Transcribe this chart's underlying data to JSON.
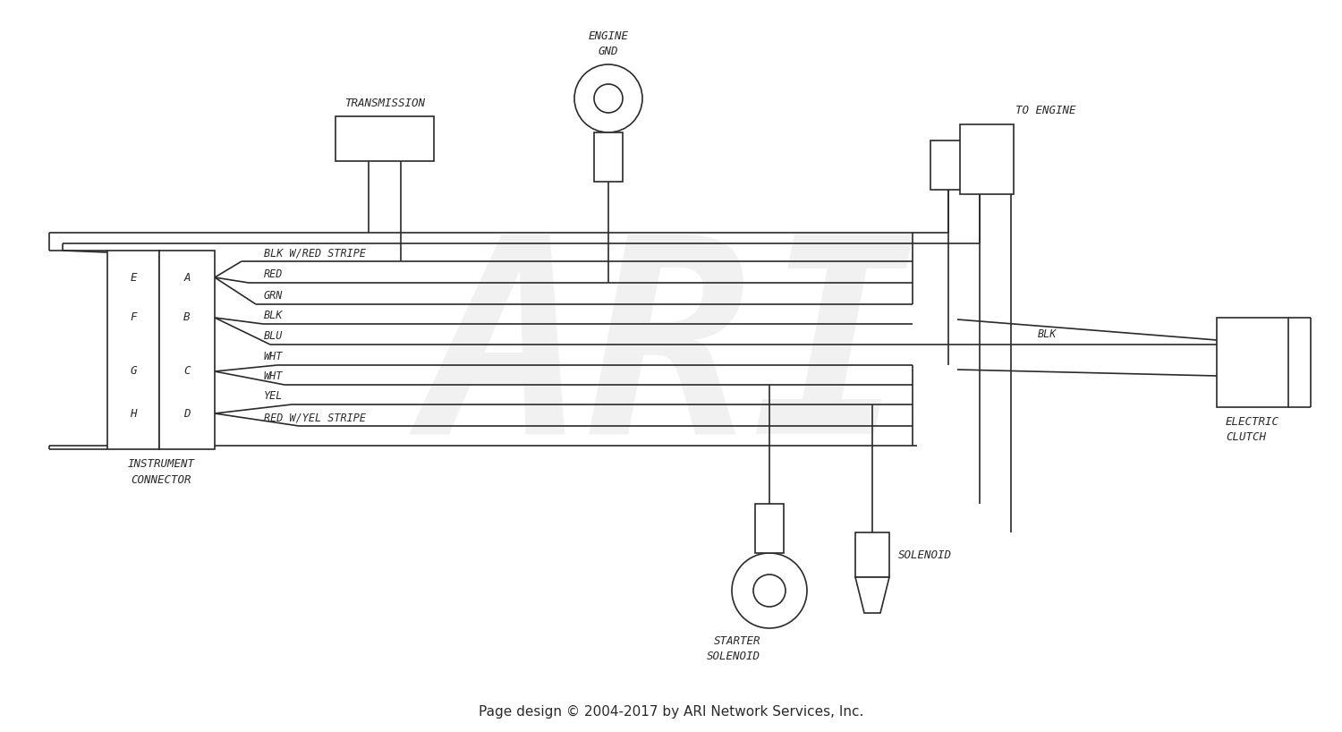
{
  "bg_color": "#ffffff",
  "lc": "#2a2a2a",
  "lw": 1.2,
  "ff": "monospace",
  "fs": 8.5,
  "footer": "Page design © 2004-2017 by ARI Network Services, Inc.",
  "wire_labels": [
    "BLK W/RED STRIPE",
    "RED",
    "GRN",
    "BLK",
    "BLU",
    "WHT",
    "WHT",
    "YEL",
    "RED W/YEL STRIPE"
  ],
  "pins_left": [
    "E",
    "F",
    "G",
    "H"
  ],
  "pins_right": [
    "A",
    "B",
    "C",
    "D"
  ]
}
